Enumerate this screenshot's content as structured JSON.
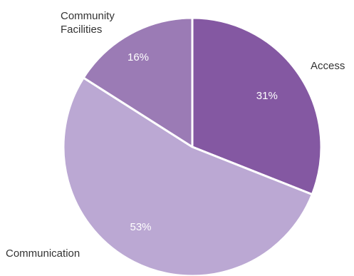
{
  "chart_data": {
    "type": "pie",
    "categories": [
      "Access",
      "Communication",
      "Community Facilities"
    ],
    "values": [
      31,
      53,
      16
    ],
    "data_labels": [
      "31%",
      "53%",
      "16%"
    ],
    "category_labels": [
      [
        "Access"
      ],
      [
        "Communication"
      ],
      [
        "Community",
        "Facilities"
      ]
    ],
    "colors": [
      "#8458a2",
      "#bba8d3",
      "#9b7bb5"
    ],
    "start_angle_deg": 0,
    "direction": "clockwise",
    "title": "",
    "legend": "none"
  }
}
